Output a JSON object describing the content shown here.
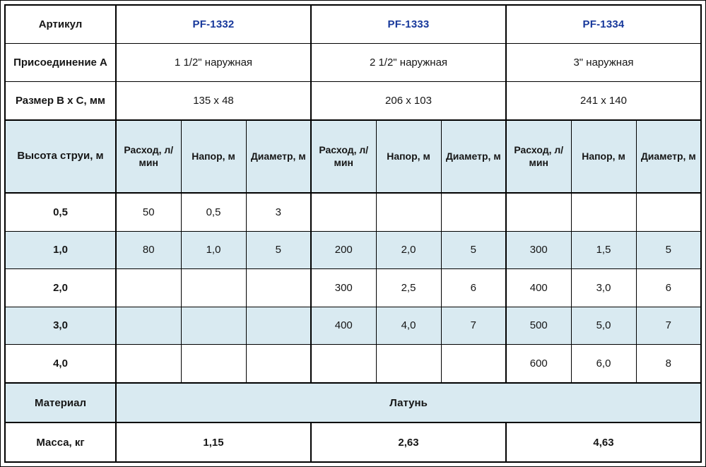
{
  "colors": {
    "article_blue": "#17389b",
    "band_blue": "#d9eaf1",
    "border_black": "#000000",
    "text_black": "#161616"
  },
  "chart_data": {
    "type": "table",
    "title": "",
    "header": {
      "article": {
        "label": "Артикул",
        "values": [
          "PF-1332",
          "PF-1333",
          "PF-1334"
        ]
      },
      "connection": {
        "label": "Присоединение А",
        "values": [
          "1 1/2\" наружная",
          "2 1/2\" наружная",
          "3\" наружная"
        ]
      },
      "size": {
        "label": "Размер B x C, мм",
        "values": [
          "135 x 48",
          "206 x 103",
          "241 x 140"
        ]
      },
      "jet_header": {
        "label": "Высота струи, м",
        "sub_columns": [
          "Расход, л/мин",
          "Напор, м",
          "Диаметр, м"
        ]
      }
    },
    "jet_rows": [
      {
        "height": "0,5",
        "cells": [
          "50",
          "0,5",
          "3",
          "",
          "",
          "",
          "",
          "",
          ""
        ]
      },
      {
        "height": "1,0",
        "cells": [
          "80",
          "1,0",
          "5",
          "200",
          "2,0",
          "5",
          "300",
          "1,5",
          "5"
        ]
      },
      {
        "height": "2,0",
        "cells": [
          "",
          "",
          "",
          "300",
          "2,5",
          "6",
          "400",
          "3,0",
          "6"
        ]
      },
      {
        "height": "3,0",
        "cells": [
          "",
          "",
          "",
          "400",
          "4,0",
          "7",
          "500",
          "5,0",
          "7"
        ]
      },
      {
        "height": "4,0",
        "cells": [
          "",
          "",
          "",
          "",
          "",
          "",
          "600",
          "6,0",
          "8"
        ]
      }
    ],
    "material": {
      "label": "Материал",
      "value": "Латунь"
    },
    "mass": {
      "label": "Масса, кг",
      "values": [
        "1,15",
        "2,63",
        "4,63"
      ]
    }
  }
}
